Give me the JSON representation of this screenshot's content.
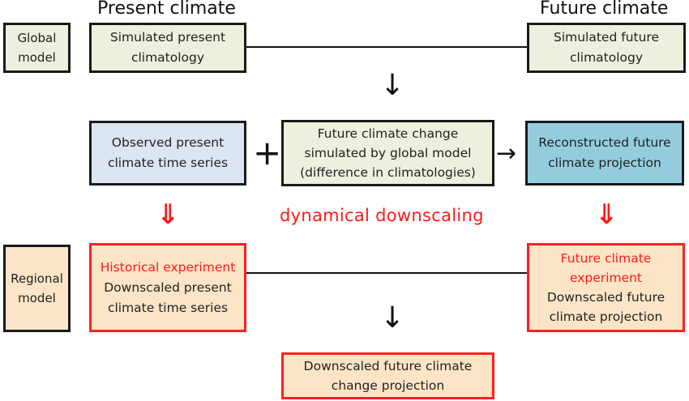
{
  "headings": {
    "present": "Present climate",
    "future": "Future climate"
  },
  "labels": {
    "global_model": [
      "Global",
      "model"
    ],
    "regional_model": [
      "Regional",
      "model"
    ]
  },
  "boxes": {
    "sim_present": [
      "Simulated present",
      "climatology"
    ],
    "sim_future": [
      "Simulated future",
      "climatology"
    ],
    "observed": [
      "Observed present",
      "climate time series"
    ],
    "change": [
      "Future climate change",
      "simulated by global model",
      "(difference in climatologies)"
    ],
    "reconstructed": [
      "Reconstructed future",
      "climate projection"
    ],
    "historical": {
      "title": "Historical experiment",
      "body": [
        "Downscaled present",
        "climate time series"
      ]
    },
    "future_exp": {
      "title": [
        "Future climate",
        "experiment"
      ],
      "body": [
        "Downscaled future",
        "climate projection"
      ]
    },
    "downscaled_change": [
      "Downscaled future climate",
      "change projection"
    ]
  },
  "symbols": {
    "plus": "+",
    "arrow_down": "↓",
    "arrow_right": "→",
    "double_arrow": "⇓"
  },
  "middle_label": "dynamical downscaling",
  "colors": {
    "green": "#ebf1de",
    "blue": "#dce6f2",
    "teal": "#93cddd",
    "peach": "#fbe5c6",
    "red": "#ff1a1a"
  }
}
